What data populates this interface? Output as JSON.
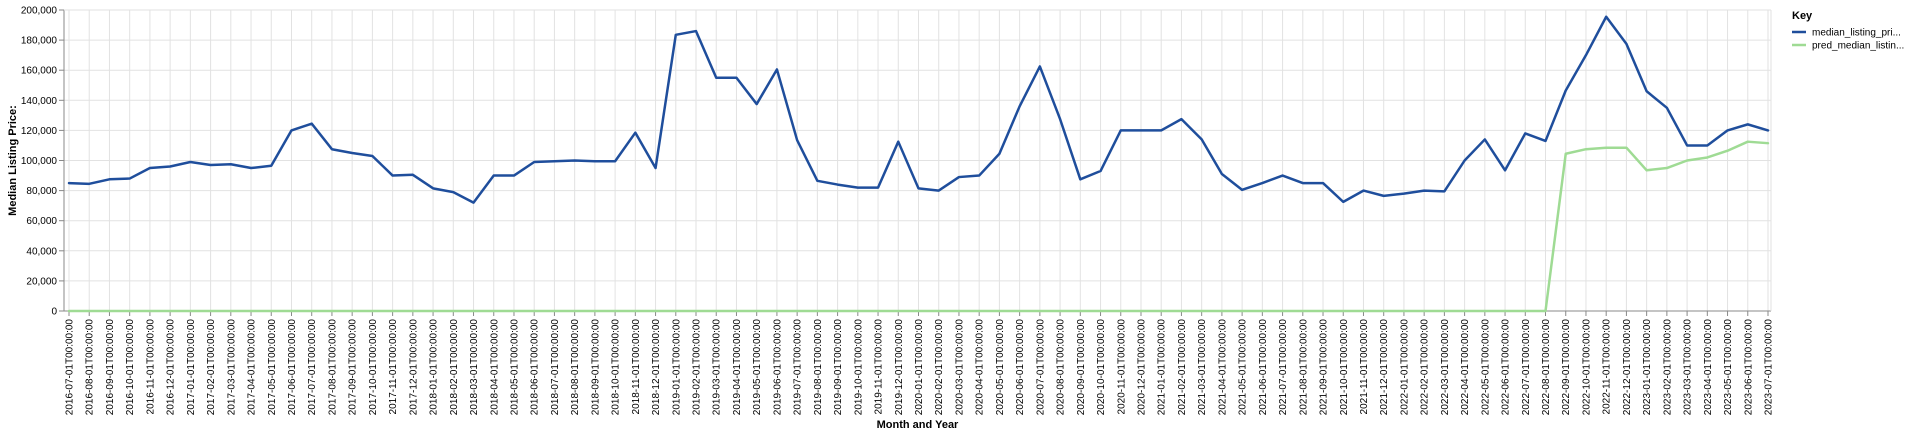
{
  "chart_data": {
    "type": "line",
    "xlabel": "Month and Year",
    "ylabel": "Median Listing Price:",
    "ylim": [
      0,
      200000
    ],
    "yticks": [
      0,
      20000,
      40000,
      60000,
      80000,
      100000,
      120000,
      140000,
      160000,
      180000,
      200000
    ],
    "ytick_labels": [
      "0",
      "20,000",
      "40,000",
      "60,000",
      "80,000",
      "100,000",
      "120,000",
      "140,000",
      "160,000",
      "180,000",
      "200,000"
    ],
    "grid": true,
    "legend": {
      "title": "Key",
      "placement": "right"
    },
    "x": [
      "2016-07-01T00:00:00",
      "2016-08-01T00:00:00",
      "2016-09-01T00:00:00",
      "2016-10-01T00:00:00",
      "2016-11-01T00:00:00",
      "2016-12-01T00:00:00",
      "2017-01-01T00:00:00",
      "2017-02-01T00:00:00",
      "2017-03-01T00:00:00",
      "2017-04-01T00:00:00",
      "2017-05-01T00:00:00",
      "2017-06-01T00:00:00",
      "2017-07-01T00:00:00",
      "2017-08-01T00:00:00",
      "2017-09-01T00:00:00",
      "2017-10-01T00:00:00",
      "2017-11-01T00:00:00",
      "2017-12-01T00:00:00",
      "2018-01-01T00:00:00",
      "2018-02-01T00:00:00",
      "2018-03-01T00:00:00",
      "2018-04-01T00:00:00",
      "2018-05-01T00:00:00",
      "2018-06-01T00:00:00",
      "2018-07-01T00:00:00",
      "2018-08-01T00:00:00",
      "2018-09-01T00:00:00",
      "2018-10-01T00:00:00",
      "2018-11-01T00:00:00",
      "2018-12-01T00:00:00",
      "2019-01-01T00:00:00",
      "2019-02-01T00:00:00",
      "2019-03-01T00:00:00",
      "2019-04-01T00:00:00",
      "2019-05-01T00:00:00",
      "2019-06-01T00:00:00",
      "2019-07-01T00:00:00",
      "2019-08-01T00:00:00",
      "2019-09-01T00:00:00",
      "2019-10-01T00:00:00",
      "2019-11-01T00:00:00",
      "2019-12-01T00:00:00",
      "2020-01-01T00:00:00",
      "2020-02-01T00:00:00",
      "2020-03-01T00:00:00",
      "2020-04-01T00:00:00",
      "2020-05-01T00:00:00",
      "2020-06-01T00:00:00",
      "2020-07-01T00:00:00",
      "2020-08-01T00:00:00",
      "2020-09-01T00:00:00",
      "2020-10-01T00:00:00",
      "2020-11-01T00:00:00",
      "2020-12-01T00:00:00",
      "2021-01-01T00:00:00",
      "2021-02-01T00:00:00",
      "2021-03-01T00:00:00",
      "2021-04-01T00:00:00",
      "2021-05-01T00:00:00",
      "2021-06-01T00:00:00",
      "2021-07-01T00:00:00",
      "2021-08-01T00:00:00",
      "2021-09-01T00:00:00",
      "2021-10-01T00:00:00",
      "2021-11-01T00:00:00",
      "2021-12-01T00:00:00",
      "2022-01-01T00:00:00",
      "2022-02-01T00:00:00",
      "2022-03-01T00:00:00",
      "2022-04-01T00:00:00",
      "2022-05-01T00:00:00",
      "2022-06-01T00:00:00",
      "2022-07-01T00:00:00",
      "2022-08-01T00:00:00",
      "2022-09-01T00:00:00",
      "2022-10-01T00:00:00",
      "2022-11-01T00:00:00",
      "2022-12-01T00:00:00",
      "2023-01-01T00:00:00",
      "2023-02-01T00:00:00",
      "2023-03-01T00:00:00",
      "2023-04-01T00:00:00",
      "2023-05-01T00:00:00",
      "2023-06-01T00:00:00",
      "2023-07-01T00:00:00"
    ],
    "series": [
      {
        "name": "median_listing_pri...",
        "color": "#1f4e9c",
        "values": [
          85000,
          84500,
          87500,
          88000,
          95000,
          96000,
          99000,
          97000,
          97500,
          95000,
          96500,
          120000,
          124500,
          107500,
          105000,
          103000,
          90000,
          90500,
          81500,
          79000,
          72000,
          90000,
          90000,
          99000,
          99500,
          100000,
          99500,
          99500,
          118500,
          95000,
          183500,
          186000,
          155000,
          155000,
          137500,
          160500,
          113500,
          86500,
          84000,
          82000,
          82000,
          112500,
          81500,
          80000,
          89000,
          90000,
          104500,
          136000,
          162500,
          127500,
          87500,
          93000,
          120000,
          120000,
          120000,
          127500,
          114000,
          91000,
          80500,
          85000,
          90000,
          85000,
          85000,
          72500,
          80000,
          76500,
          78000,
          80000,
          79500,
          100000,
          114000,
          93500,
          118000,
          113000,
          146500,
          170000,
          195500,
          177500,
          146000,
          135000,
          110000,
          110000,
          120000,
          124000,
          120000
        ]
      },
      {
        "name": "pred_median_listin...",
        "color": "#9fdb94",
        "values": [
          0,
          0,
          0,
          0,
          0,
          0,
          0,
          0,
          0,
          0,
          0,
          0,
          0,
          0,
          0,
          0,
          0,
          0,
          0,
          0,
          0,
          0,
          0,
          0,
          0,
          0,
          0,
          0,
          0,
          0,
          0,
          0,
          0,
          0,
          0,
          0,
          0,
          0,
          0,
          0,
          0,
          0,
          0,
          0,
          0,
          0,
          0,
          0,
          0,
          0,
          0,
          0,
          0,
          0,
          0,
          0,
          0,
          0,
          0,
          0,
          0,
          0,
          0,
          0,
          0,
          0,
          0,
          0,
          0,
          0,
          0,
          0,
          0,
          0,
          104500,
          107500,
          108500,
          108500,
          93500,
          95000,
          100000,
          102000,
          106500,
          112500,
          111500
        ]
      }
    ]
  }
}
